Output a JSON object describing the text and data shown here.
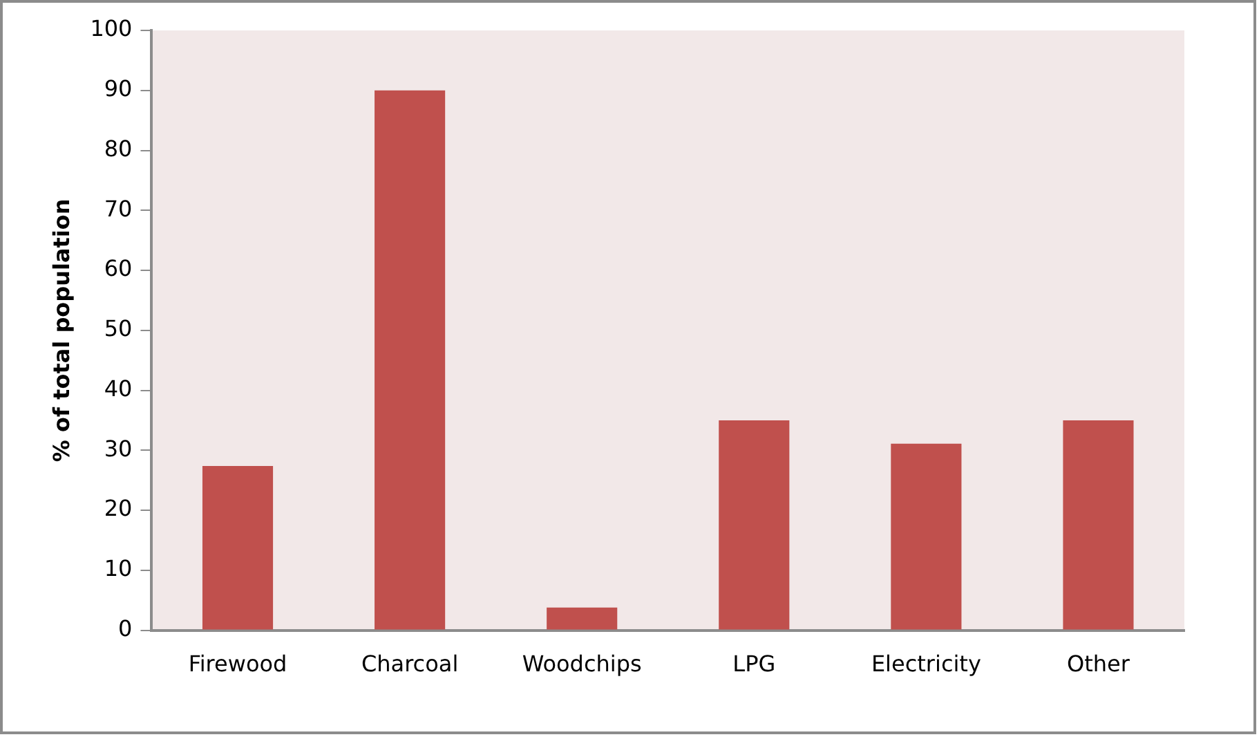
{
  "chart_data": {
    "type": "bar",
    "ylabel": "% of total population",
    "categories": [
      "Firewood",
      "Charcoal",
      "Woodchips",
      "LPG",
      "Electricity",
      "Other"
    ],
    "values": [
      27.4,
      90,
      3.8,
      35,
      31.1,
      35
    ],
    "color": "#c0504d",
    "ylim": [
      0,
      100
    ],
    "yticks": [
      0,
      10,
      20,
      30,
      40,
      50,
      60,
      70,
      80,
      90,
      100
    ],
    "grid": false,
    "legend": false
  }
}
